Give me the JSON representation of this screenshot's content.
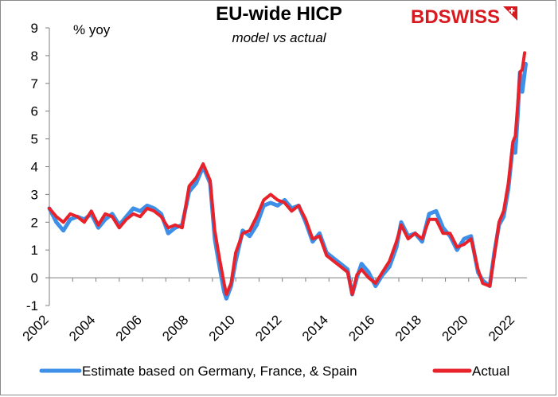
{
  "chart_data": {
    "type": "line",
    "title": "EU-wide HICP",
    "subtitle": "model vs actual",
    "ylabel": "% yoy",
    "ylim": [
      -1,
      9
    ],
    "yticks": [
      -1,
      0,
      1,
      2,
      3,
      4,
      5,
      6,
      7,
      8,
      9
    ],
    "xlim": [
      2002,
      2022.5
    ],
    "xticks": [
      "2002",
      "2004",
      "2006",
      "2008",
      "2010",
      "2012",
      "2014",
      "2016",
      "2018",
      "2020",
      "2022"
    ],
    "grid": false,
    "legend_position": "bottom",
    "series": [
      {
        "name": "Estimate based on Germany, France, & Spain",
        "color": "#3d8fe8",
        "points": [
          [
            2002.0,
            2.5
          ],
          [
            2002.3,
            2.0
          ],
          [
            2002.6,
            1.7
          ],
          [
            2002.9,
            2.1
          ],
          [
            2003.2,
            2.2
          ],
          [
            2003.5,
            2.1
          ],
          [
            2003.8,
            2.3
          ],
          [
            2004.1,
            1.8
          ],
          [
            2004.4,
            2.1
          ],
          [
            2004.7,
            2.3
          ],
          [
            2005.0,
            1.9
          ],
          [
            2005.3,
            2.2
          ],
          [
            2005.6,
            2.5
          ],
          [
            2005.9,
            2.4
          ],
          [
            2006.2,
            2.6
          ],
          [
            2006.5,
            2.5
          ],
          [
            2006.8,
            2.3
          ],
          [
            2007.1,
            1.6
          ],
          [
            2007.4,
            1.8
          ],
          [
            2007.7,
            1.9
          ],
          [
            2008.0,
            3.1
          ],
          [
            2008.3,
            3.4
          ],
          [
            2008.6,
            4.0
          ],
          [
            2008.9,
            3.4
          ],
          [
            2009.1,
            1.4
          ],
          [
            2009.3,
            0.4
          ],
          [
            2009.5,
            -0.5
          ],
          [
            2009.6,
            -0.75
          ],
          [
            2009.8,
            -0.3
          ],
          [
            2010.0,
            0.6
          ],
          [
            2010.3,
            1.7
          ],
          [
            2010.6,
            1.5
          ],
          [
            2010.9,
            1.9
          ],
          [
            2011.2,
            2.6
          ],
          [
            2011.5,
            2.7
          ],
          [
            2011.8,
            2.6
          ],
          [
            2012.1,
            2.8
          ],
          [
            2012.4,
            2.5
          ],
          [
            2012.7,
            2.6
          ],
          [
            2013.0,
            2.0
          ],
          [
            2013.3,
            1.3
          ],
          [
            2013.6,
            1.6
          ],
          [
            2013.9,
            0.9
          ],
          [
            2014.2,
            0.7
          ],
          [
            2014.5,
            0.5
          ],
          [
            2014.8,
            0.3
          ],
          [
            2015.0,
            -0.6
          ],
          [
            2015.2,
            0.0
          ],
          [
            2015.4,
            0.5
          ],
          [
            2015.7,
            0.2
          ],
          [
            2016.0,
            -0.3
          ],
          [
            2016.3,
            0.1
          ],
          [
            2016.6,
            0.4
          ],
          [
            2016.9,
            1.1
          ],
          [
            2017.1,
            2.0
          ],
          [
            2017.4,
            1.5
          ],
          [
            2017.7,
            1.6
          ],
          [
            2018.0,
            1.3
          ],
          [
            2018.3,
            2.3
          ],
          [
            2018.6,
            2.4
          ],
          [
            2018.9,
            1.8
          ],
          [
            2019.2,
            1.5
          ],
          [
            2019.5,
            1.0
          ],
          [
            2019.8,
            1.4
          ],
          [
            2020.1,
            1.5
          ],
          [
            2020.4,
            0.2
          ],
          [
            2020.6,
            -0.1
          ],
          [
            2020.9,
            -0.3
          ],
          [
            2021.1,
            0.9
          ],
          [
            2021.3,
            1.9
          ],
          [
            2021.5,
            2.2
          ],
          [
            2021.7,
            3.2
          ],
          [
            2021.9,
            4.8
          ],
          [
            2022.0,
            4.5
          ],
          [
            2022.1,
            5.8
          ],
          [
            2022.2,
            7.4
          ],
          [
            2022.3,
            6.7
          ],
          [
            2022.45,
            7.7
          ]
        ]
      },
      {
        "name": "Actual",
        "color": "#e8222a",
        "points": [
          [
            2002.0,
            2.5
          ],
          [
            2002.3,
            2.2
          ],
          [
            2002.6,
            2.0
          ],
          [
            2002.9,
            2.3
          ],
          [
            2003.2,
            2.2
          ],
          [
            2003.5,
            2.0
          ],
          [
            2003.8,
            2.4
          ],
          [
            2004.1,
            1.9
          ],
          [
            2004.4,
            2.3
          ],
          [
            2004.7,
            2.2
          ],
          [
            2005.0,
            1.8
          ],
          [
            2005.3,
            2.1
          ],
          [
            2005.6,
            2.3
          ],
          [
            2005.9,
            2.2
          ],
          [
            2006.2,
            2.5
          ],
          [
            2006.5,
            2.4
          ],
          [
            2006.8,
            2.2
          ],
          [
            2007.1,
            1.8
          ],
          [
            2007.4,
            1.9
          ],
          [
            2007.7,
            1.8
          ],
          [
            2008.0,
            3.3
          ],
          [
            2008.3,
            3.6
          ],
          [
            2008.6,
            4.1
          ],
          [
            2008.9,
            3.5
          ],
          [
            2009.1,
            1.7
          ],
          [
            2009.3,
            0.7
          ],
          [
            2009.5,
            -0.2
          ],
          [
            2009.6,
            -0.6
          ],
          [
            2009.8,
            -0.2
          ],
          [
            2010.0,
            0.9
          ],
          [
            2010.3,
            1.6
          ],
          [
            2010.6,
            1.7
          ],
          [
            2010.9,
            2.2
          ],
          [
            2011.2,
            2.8
          ],
          [
            2011.5,
            3.0
          ],
          [
            2011.8,
            2.8
          ],
          [
            2012.1,
            2.7
          ],
          [
            2012.4,
            2.4
          ],
          [
            2012.7,
            2.6
          ],
          [
            2013.0,
            2.1
          ],
          [
            2013.3,
            1.4
          ],
          [
            2013.6,
            1.5
          ],
          [
            2013.9,
            0.8
          ],
          [
            2014.2,
            0.6
          ],
          [
            2014.5,
            0.4
          ],
          [
            2014.8,
            0.2
          ],
          [
            2015.0,
            -0.6
          ],
          [
            2015.2,
            0.1
          ],
          [
            2015.4,
            0.3
          ],
          [
            2015.7,
            0.0
          ],
          [
            2016.0,
            -0.2
          ],
          [
            2016.3,
            0.2
          ],
          [
            2016.6,
            0.6
          ],
          [
            2016.9,
            1.3
          ],
          [
            2017.1,
            1.9
          ],
          [
            2017.4,
            1.4
          ],
          [
            2017.7,
            1.6
          ],
          [
            2018.0,
            1.4
          ],
          [
            2018.3,
            2.1
          ],
          [
            2018.6,
            2.1
          ],
          [
            2018.9,
            1.6
          ],
          [
            2019.2,
            1.6
          ],
          [
            2019.5,
            1.1
          ],
          [
            2019.8,
            1.2
          ],
          [
            2020.1,
            1.4
          ],
          [
            2020.4,
            0.3
          ],
          [
            2020.6,
            -0.2
          ],
          [
            2020.9,
            -0.3
          ],
          [
            2021.1,
            0.8
          ],
          [
            2021.3,
            2.0
          ],
          [
            2021.5,
            2.4
          ],
          [
            2021.7,
            3.4
          ],
          [
            2021.9,
            4.9
          ],
          [
            2022.0,
            5.1
          ],
          [
            2022.1,
            6.2
          ],
          [
            2022.2,
            7.4
          ],
          [
            2022.3,
            7.5
          ],
          [
            2022.4,
            8.1
          ]
        ]
      }
    ]
  },
  "logo": {
    "brand_red": "BDSWISS"
  }
}
